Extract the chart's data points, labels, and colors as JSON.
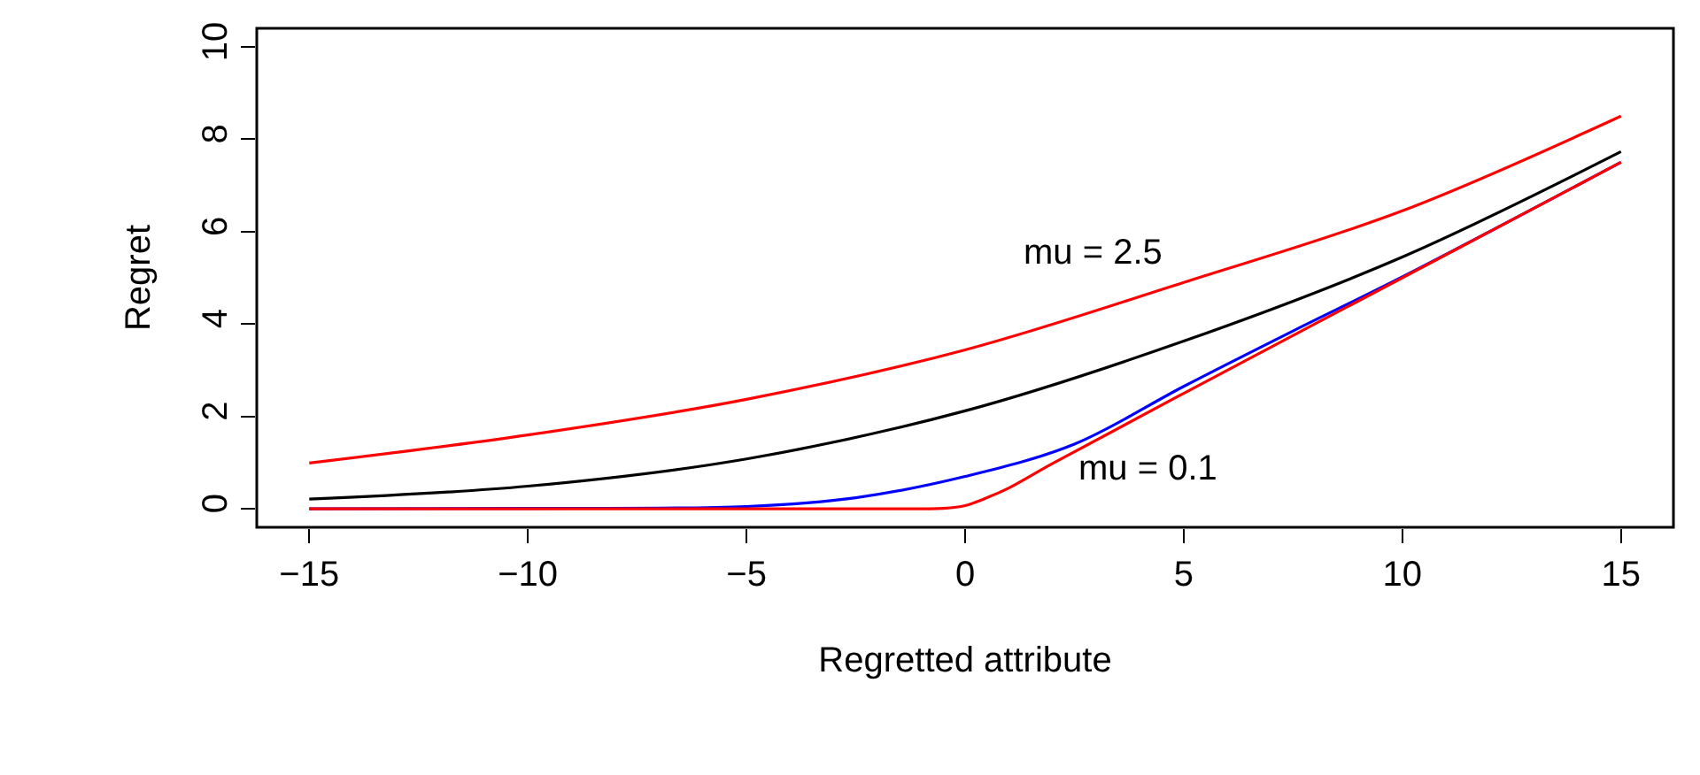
{
  "chart_data": {
    "type": "line",
    "xlabel": "Regretted attribute",
    "ylabel": "Regret",
    "xlim": [
      -16.2,
      16.2
    ],
    "ylim": [
      -0.4,
      10.4
    ],
    "xticks": [
      -15,
      -10,
      -5,
      0,
      5,
      10,
      15
    ],
    "yticks": [
      0,
      2,
      4,
      6,
      8,
      10
    ],
    "marker": "none",
    "line_style": "solid",
    "series": [
      {
        "color": "#ff0000",
        "x": [
          -15,
          -10,
          -5,
          0,
          5,
          10,
          15
        ],
        "values": [
          0.99,
          1.6,
          2.37,
          3.44,
          4.9,
          6.45,
          8.5
        ]
      },
      {
        "color": "#000000",
        "x": [
          -15,
          -10,
          -5,
          0,
          5,
          10,
          15
        ],
        "values": [
          0.21,
          0.49,
          1.08,
          2.12,
          3.63,
          5.45,
          7.73
        ]
      },
      {
        "color": "#0000ff",
        "x": [
          -15,
          -10,
          -5,
          -2.5,
          0,
          2.5,
          5,
          7.5,
          10,
          15
        ],
        "values": [
          0,
          0.01,
          0.05,
          0.24,
          0.7,
          1.4,
          2.65,
          3.85,
          5.02,
          7.5
        ]
      },
      {
        "color": "#ff0000",
        "x": [
          -15,
          -1,
          -0.5,
          0,
          0.5,
          1,
          2,
          5,
          10,
          15
        ],
        "values": [
          0,
          0,
          0.01,
          0.07,
          0.24,
          0.45,
          0.98,
          2.5,
          5.0,
          7.5
        ]
      }
    ],
    "annotations": [
      "mu = 2.5",
      "mu = 0.1"
    ]
  }
}
